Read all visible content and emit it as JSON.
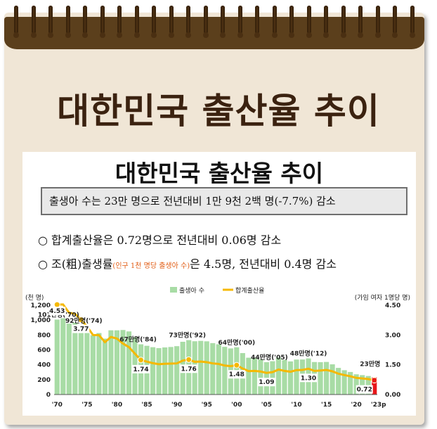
{
  "banner_title": "대한민국 출산율 추이",
  "inner_title": "대한민국 출산율 추이",
  "summary": "출생아 수는 23만 명으로 전년대비 1만 9천 2백 명(-7.7%) 감소",
  "bullet1": "○ 합계출산율은 0.72명으로 전년대비 0.06명 감소",
  "bullet2_a": "○ 조(粗)출생률",
  "bullet2_note": "(인구 1천 명당 출생아 수)",
  "bullet2_b": "은 4.5명, 전년대비 0.4명 감소",
  "colors": {
    "bar": "#a8dca5",
    "line": "#f5b800",
    "highlight": "#e8161a",
    "brown": "#5b3f1c",
    "paper": "#f0e6d6"
  },
  "chart_data": {
    "type": "bar",
    "left_axis_unit": "(천 명)",
    "right_axis_unit": "(가임 여자 1명당 명)",
    "ylim_left": [
      0,
      1200
    ],
    "ylim_right": [
      0,
      4.5
    ],
    "left_ticks": [
      "0",
      "200",
      "400",
      "600",
      "800",
      "1,000",
      "1,200"
    ],
    "right_ticks": [
      "0.00",
      "1.50",
      "3.00",
      "4.50"
    ],
    "x_ticks": [
      "'70",
      "'75",
      "'80",
      "'85",
      "'90",
      "'95",
      "'00",
      "'05",
      "'10",
      "'15",
      "'20",
      "'23p"
    ],
    "legend": [
      "출생아 수",
      "합계출산율"
    ],
    "series": [
      {
        "name": "출생아 수",
        "type": "bar",
        "x": [
          1970,
          1971,
          1972,
          1973,
          1974,
          1975,
          1976,
          1977,
          1978,
          1979,
          1980,
          1981,
          1982,
          1983,
          1984,
          1985,
          1986,
          1987,
          1988,
          1989,
          1990,
          1991,
          1992,
          1993,
          1994,
          1995,
          1996,
          1997,
          1998,
          1999,
          2000,
          2001,
          2002,
          2003,
          2004,
          2005,
          2006,
          2007,
          2008,
          2009,
          2010,
          2011,
          2012,
          2013,
          2014,
          2015,
          2016,
          2017,
          2018,
          2019,
          2020,
          2021,
          2022,
          2023
        ],
        "values": [
          1007,
          1025,
          953,
          966,
          925,
          875,
          797,
          826,
          751,
          863,
          863,
          867,
          848,
          770,
          675,
          655,
          636,
          624,
          633,
          639,
          650,
          709,
          731,
          716,
          721,
          715,
          691,
          675,
          641,
          620,
          635,
          557,
          495,
          495,
          473,
          435,
          448,
          497,
          466,
          445,
          470,
          471,
          485,
          437,
          435,
          438,
          406,
          358,
          327,
          303,
          272,
          261,
          249,
          230
        ]
      },
      {
        "name": "합계출산율",
        "type": "line",
        "x": [
          1970,
          1971,
          1972,
          1973,
          1974,
          1975,
          1976,
          1977,
          1978,
          1979,
          1980,
          1981,
          1982,
          1983,
          1984,
          1985,
          1986,
          1987,
          1988,
          1989,
          1990,
          1991,
          1992,
          1993,
          1994,
          1995,
          1996,
          1997,
          1998,
          1999,
          2000,
          2001,
          2002,
          2003,
          2004,
          2005,
          2006,
          2007,
          2008,
          2009,
          2010,
          2011,
          2012,
          2013,
          2014,
          2015,
          2016,
          2017,
          2018,
          2019,
          2020,
          2021,
          2022,
          2023
        ],
        "values": [
          4.53,
          4.54,
          4.12,
          4.07,
          3.77,
          3.43,
          3.0,
          2.99,
          2.64,
          2.9,
          2.82,
          2.57,
          2.39,
          2.06,
          1.74,
          1.66,
          1.58,
          1.53,
          1.55,
          1.56,
          1.57,
          1.71,
          1.76,
          1.65,
          1.66,
          1.63,
          1.57,
          1.54,
          1.46,
          1.43,
          1.48,
          1.31,
          1.18,
          1.19,
          1.16,
          1.09,
          1.13,
          1.26,
          1.19,
          1.15,
          1.23,
          1.24,
          1.3,
          1.19,
          1.21,
          1.24,
          1.17,
          1.05,
          0.98,
          0.92,
          0.84,
          0.81,
          0.78,
          0.72
        ]
      }
    ],
    "bar_labels": [
      {
        "year": 1970,
        "text": "101만명('70)"
      },
      {
        "year": 1974,
        "text": "92만명('74)"
      },
      {
        "year": 1984,
        "text": "67만명('84)"
      },
      {
        "year": 1992,
        "text": "73만명('92)"
      },
      {
        "year": 2000,
        "text": "64만명('00)"
      },
      {
        "year": 2005,
        "text": "44만명('05)"
      },
      {
        "year": 2012,
        "text": "48만명('12)"
      },
      {
        "year": 2023,
        "text": "23만명"
      }
    ],
    "rate_labels": [
      {
        "year": 1970,
        "text": "4.53"
      },
      {
        "year": 1974,
        "text": "3.77"
      },
      {
        "year": 1984,
        "text": "1.74"
      },
      {
        "year": 1992,
        "text": "1.76"
      },
      {
        "year": 2000,
        "text": "1.48"
      },
      {
        "year": 2005,
        "text": "1.09"
      },
      {
        "year": 2012,
        "text": "1.30"
      },
      {
        "year": 2023,
        "text": "0.72"
      }
    ]
  }
}
